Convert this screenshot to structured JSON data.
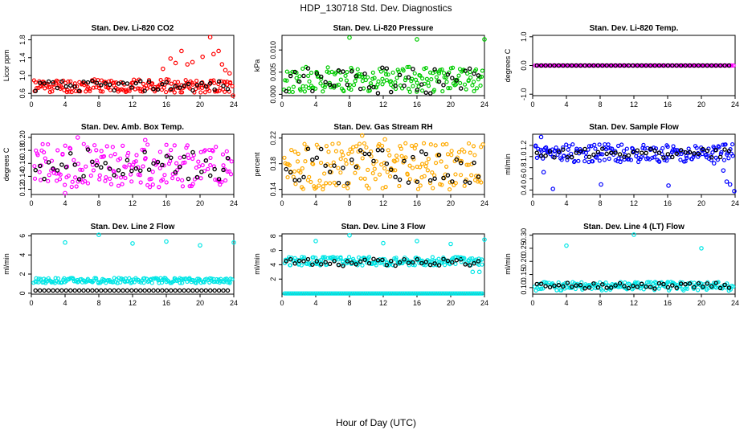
{
  "title": "HDP_130718  Std. Dev. Diagnostics",
  "xlabel": "Hour of Day (UTC)",
  "chart_data": [
    {
      "type": "scatter",
      "title": "Stan. Dev. Li-820 CO2",
      "ylabel": "Licor ppm",
      "color": "#ff0000",
      "xlim": [
        0,
        24
      ],
      "ylim": [
        0.55,
        1.9
      ],
      "xticks": [
        0,
        4,
        8,
        12,
        16,
        20,
        24
      ],
      "yticks": [
        0.6,
        1.0,
        1.4,
        1.8
      ],
      "ytick_labels": [
        "0.6",
        "1.0",
        "1.4",
        "1.8"
      ],
      "bands": {
        "main": [
          0.62,
          0.92
        ],
        "black": [
          0.65,
          0.88
        ],
        "seed": 11
      },
      "outliers": [
        [
          15.6,
          1.15
        ],
        [
          16.5,
          1.38
        ],
        [
          17.1,
          1.28
        ],
        [
          17.8,
          1.55
        ],
        [
          18.5,
          1.25
        ],
        [
          19.1,
          1.3
        ],
        [
          20.3,
          1.42
        ],
        [
          21.2,
          1.86
        ],
        [
          21.6,
          1.48
        ],
        [
          22.2,
          1.55
        ],
        [
          22.6,
          1.25
        ],
        [
          23.0,
          1.12
        ],
        [
          23.5,
          1.05
        ],
        [
          23.9,
          0.55
        ]
      ]
    },
    {
      "type": "scatter",
      "title": "Stan. Dev. Li-820 Pressure",
      "ylabel": "kPa",
      "color": "#00cc00",
      "xlim": [
        0,
        24
      ],
      "ylim": [
        -0.0003,
        0.0133
      ],
      "xticks": [
        0,
        4,
        8,
        12,
        16,
        20,
        24
      ],
      "yticks": [
        0,
        0.005,
        0.01
      ],
      "ytick_labels": [
        "0.000",
        "0.005",
        "0.010"
      ],
      "bands": {
        "main": [
          0.0005,
          0.0062
        ],
        "black": [
          0.0,
          0.006
        ],
        "seed": 22
      },
      "outliers": [
        [
          8.0,
          0.0128
        ],
        [
          16.0,
          0.0124
        ],
        [
          24.0,
          0.0124
        ]
      ]
    },
    {
      "type": "scatter",
      "title": "Stan. Dev. Li-820 Temp.",
      "ylabel": "degrees C",
      "color": "#ff00ff",
      "xlim": [
        0,
        24
      ],
      "ylim": [
        -1.05,
        1.05
      ],
      "xticks": [
        0,
        4,
        8,
        12,
        16,
        20,
        24
      ],
      "yticks": [
        -1,
        0,
        1
      ],
      "ytick_labels": [
        "-1.0",
        "0.0",
        "1.0"
      ],
      "bands": {
        "main": [
          0,
          0
        ],
        "black": [
          0,
          0
        ],
        "seed": 33
      },
      "outliers": []
    },
    {
      "type": "scatter",
      "title": "Stan. Dev. Amb. Box Temp.",
      "ylabel": "degrees C",
      "color": "#ff00ff",
      "xlim": [
        0,
        24
      ],
      "ylim": [
        0.112,
        0.205
      ],
      "xticks": [
        0,
        4,
        8,
        12,
        16,
        20,
        24
      ],
      "yticks": [
        0.12,
        0.14,
        0.16,
        0.18,
        0.2
      ],
      "ytick_labels": [
        "0.12",
        "0.14",
        "0.16",
        "0.18",
        "0.20"
      ],
      "bands": {
        "main": [
          0.123,
          0.19
        ],
        "black": [
          0.135,
          0.182
        ],
        "seed": 44
      },
      "outliers": [
        [
          4.0,
          0.114
        ],
        [
          5.5,
          0.2
        ],
        [
          13.5,
          0.196
        ]
      ]
    },
    {
      "type": "scatter",
      "title": "Stan. Dev. Gas Stream RH",
      "ylabel": "percent",
      "color": "#ffaa00",
      "xlim": [
        0,
        24
      ],
      "ylim": [
        0.132,
        0.226
      ],
      "xticks": [
        0,
        4,
        8,
        12,
        16,
        20,
        24
      ],
      "yticks": [
        0.14,
        0.18,
        0.22
      ],
      "ytick_labels": [
        "0.14",
        "0.18",
        "0.22"
      ],
      "bands": {
        "main": [
          0.14,
          0.212
        ],
        "black": [
          0.148,
          0.205
        ],
        "seed": 55
      },
      "outliers": [
        [
          9.5,
          0.224
        ],
        [
          12.2,
          0.218
        ]
      ]
    },
    {
      "type": "scatter",
      "title": "Stan. Dev. Sample Flow",
      "ylabel": "ml/min",
      "color": "#0000ff",
      "xlim": [
        0,
        24
      ],
      "ylim": [
        0.32,
        1.4
      ],
      "xticks": [
        0,
        4,
        8,
        12,
        16,
        20,
        24
      ],
      "yticks": [
        0.4,
        0.6,
        0.8,
        1.0,
        1.2
      ],
      "ytick_labels": [
        "0.4",
        "0.6",
        "0.8",
        "1.0",
        "1.2"
      ],
      "bands": {
        "main": [
          0.9,
          1.22
        ],
        "black": [
          0.98,
          1.15
        ],
        "seed": 66
      },
      "outliers": [
        [
          1.0,
          1.35
        ],
        [
          1.3,
          0.72
        ],
        [
          2.4,
          0.42
        ],
        [
          8.1,
          0.5
        ],
        [
          16.1,
          0.48
        ],
        [
          21.5,
          0.88
        ],
        [
          22.6,
          0.75
        ],
        [
          23.0,
          0.55
        ],
        [
          23.4,
          0.5
        ],
        [
          23.9,
          0.38
        ]
      ]
    },
    {
      "type": "scatter",
      "title": "Stan. Dev. Line 2 Flow",
      "ylabel": "ml/min",
      "color": "#00e6e6",
      "xlim": [
        0,
        24
      ],
      "ylim": [
        -0.1,
        6.2
      ],
      "xticks": [
        0,
        4,
        8,
        12,
        16,
        20,
        24
      ],
      "yticks": [
        0,
        2,
        4,
        6
      ],
      "ytick_labels": [
        "0",
        "2",
        "4",
        "6"
      ],
      "bands": {
        "main": [
          1.05,
          1.6
        ],
        "black": [
          0.28,
          0.28
        ],
        "seed": 77
      },
      "outliers": [
        [
          4.0,
          5.3
        ],
        [
          8.0,
          6.1
        ],
        [
          12.0,
          5.2
        ],
        [
          16.0,
          5.4
        ],
        [
          20.0,
          5.0
        ],
        [
          24.0,
          5.3
        ]
      ]
    },
    {
      "type": "scatter",
      "title": "Stan. Dev. Line 3 Flow",
      "ylabel": "ml/min",
      "color": "#00e6e6",
      "xlim": [
        0,
        24
      ],
      "ylim": [
        -0.1,
        8.3
      ],
      "xticks": [
        0,
        4,
        8,
        12,
        16,
        20,
        24
      ],
      "yticks": [
        2,
        4,
        6,
        8
      ],
      "ytick_labels": [
        "2",
        "4",
        "6",
        "8"
      ],
      "bands": {
        "main": [
          3.9,
          5.1
        ],
        "black": [
          3.8,
          4.8
        ],
        "seed": 88,
        "baseline": [
          0.0,
          0.0
        ]
      },
      "outliers": [
        [
          4.0,
          7.3
        ],
        [
          8.0,
          8.1
        ],
        [
          12.0,
          7.0
        ],
        [
          16.0,
          7.3
        ],
        [
          20.0,
          6.9
        ],
        [
          24.0,
          7.5
        ],
        [
          21.2,
          5.0
        ],
        [
          22.6,
          3.0
        ],
        [
          23.4,
          3.0
        ]
      ]
    },
    {
      "type": "scatter",
      "title": "Stan. Dev. Line 4 (LT) Flow",
      "ylabel": "ml/min",
      "color": "#00e6e6",
      "xlim": [
        0,
        24
      ],
      "ylim": [
        0.075,
        0.305
      ],
      "xticks": [
        0,
        4,
        8,
        12,
        16,
        20,
        24
      ],
      "yticks": [
        0.1,
        0.15,
        0.2,
        0.25,
        0.3
      ],
      "ytick_labels": [
        "0.10",
        "0.15",
        "0.20",
        "0.25",
        "0.30"
      ],
      "bands": {
        "main": [
          0.088,
          0.122
        ],
        "black": [
          0.095,
          0.118
        ],
        "seed": 99
      },
      "outliers": [
        [
          4.0,
          0.26
        ],
        [
          12.0,
          0.302
        ],
        [
          20.0,
          0.25
        ]
      ]
    }
  ]
}
